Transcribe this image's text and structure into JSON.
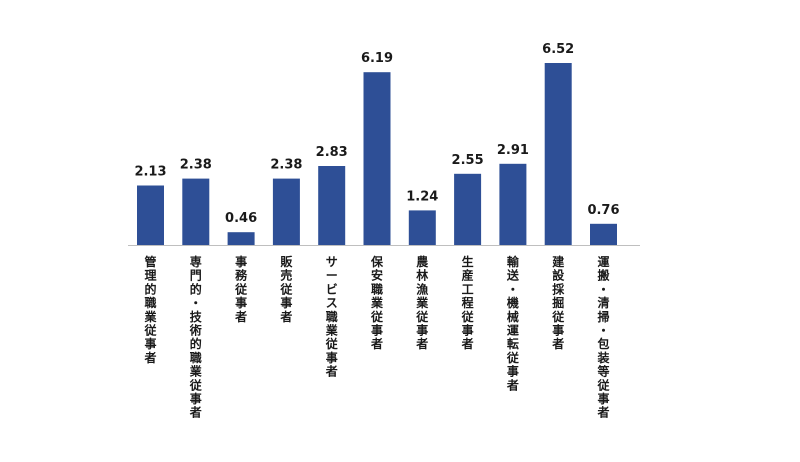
{
  "chart_data": {
    "type": "bar",
    "title": "",
    "xlabel": "",
    "ylabel": "",
    "categories": [
      "管理的職業従事者",
      "専門的・技術的職業従事者",
      "事務従事者",
      "販売従事者",
      "サービス職業従事者",
      "保安職業従事者",
      "農林漁業従事者",
      "生産工程従事者",
      "輸送・機械運転従事者",
      "建設採掘従事者",
      "運搬・清掃・包装等従事者"
    ],
    "values": [
      2.13,
      2.38,
      0.46,
      2.38,
      2.83,
      6.19,
      1.24,
      2.55,
      2.91,
      6.52,
      0.76
    ],
    "value_labels": [
      "2.13",
      "2.38",
      "0.46",
      "2.38",
      "2.83",
      "6.19",
      "1.24",
      "2.55",
      "2.91",
      "6.52",
      "0.76"
    ],
    "ylim": [
      0,
      6.52
    ],
    "grid": false,
    "legend": "none",
    "colors": {
      "bar": "#2e4f96",
      "axis": "#bfbfbf",
      "text": "#1a1a1a"
    }
  }
}
